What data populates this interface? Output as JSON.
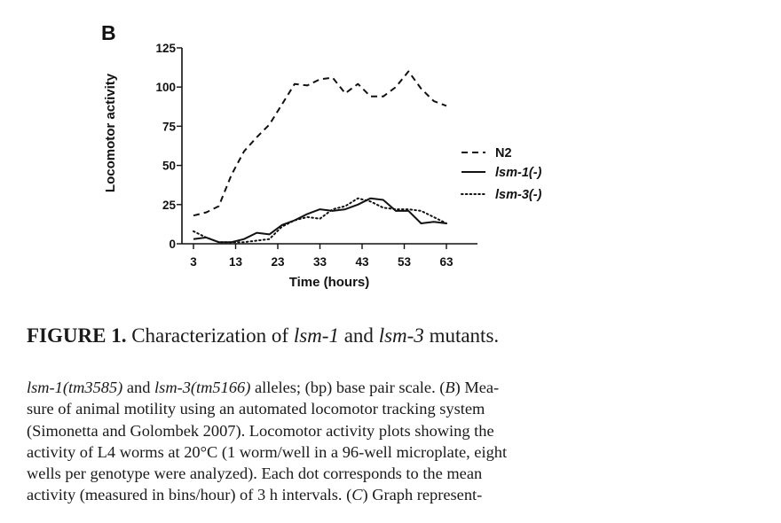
{
  "panel_label": "B",
  "chart_data": {
    "type": "line",
    "ylabel": "Locomotor activity",
    "xlabel": "Time (hours)",
    "yticks": [
      "0",
      "25",
      "50",
      "75",
      "100",
      "125"
    ],
    "xticks": [
      "3",
      "13",
      "23",
      "33",
      "43",
      "53",
      "63"
    ],
    "ylim": [
      0,
      125
    ],
    "xlim": [
      3,
      63
    ],
    "grid": false,
    "legend_position": "right",
    "series": [
      {
        "name": "N2",
        "line_style": "dashed",
        "x": [
          3,
          6,
          9,
          12,
          15,
          18,
          21,
          24,
          27,
          30,
          33,
          36,
          39,
          42,
          45,
          48,
          51,
          54,
          57,
          60,
          63
        ],
        "values": [
          18,
          20,
          24,
          44,
          59,
          68,
          76,
          89,
          102,
          101,
          105,
          106,
          96,
          102,
          94,
          94,
          100,
          110,
          99,
          91,
          88
        ]
      },
      {
        "name": "lsm-1(-)",
        "line_style": "solid",
        "x": [
          3,
          6,
          9,
          12,
          15,
          18,
          21,
          24,
          27,
          30,
          33,
          36,
          39,
          42,
          45,
          48,
          51,
          54,
          57,
          60,
          63
        ],
        "values": [
          3,
          4,
          1,
          1,
          3,
          7,
          6,
          12,
          15,
          19,
          22,
          21,
          22,
          25,
          29,
          28,
          21,
          21,
          13,
          14,
          13
        ]
      },
      {
        "name": "lsm-3(-)",
        "line_style": "dotted",
        "x": [
          3,
          6,
          9,
          12,
          15,
          18,
          21,
          24,
          27,
          30,
          33,
          36,
          39,
          42,
          45,
          48,
          51,
          54,
          57,
          60,
          63
        ],
        "values": [
          8,
          4,
          1,
          1,
          1,
          2,
          3,
          11,
          15,
          17,
          16,
          22,
          24,
          29,
          27,
          23,
          22,
          22,
          21,
          17,
          13
        ]
      }
    ]
  },
  "figure_title": {
    "label": "FIGURE 1.",
    "text_before": " Characterization of ",
    "gene1": "lsm-1",
    "text_middle": " and ",
    "gene2": "lsm-3",
    "text_after": " mutants."
  },
  "caption_lines": [
    [
      {
        "t": "lsm-1(tm3585)",
        "i": true
      },
      {
        "t": " and ",
        "i": false
      },
      {
        "t": "lsm-3(tm5166)",
        "i": true
      },
      {
        "t": " alleles; (bp) base pair scale. (",
        "i": false
      },
      {
        "t": "B",
        "i": true
      },
      {
        "t": ") Mea-",
        "i": false
      }
    ],
    [
      {
        "t": "sure of animal motility using an automated locomotor tracking system",
        "i": false
      }
    ],
    [
      {
        "t": "(Simonetta and Golombek 2007). Locomotor activity plots showing the",
        "i": false
      }
    ],
    [
      {
        "t": "activity of L4 worms at 20°C (1 worm/well in a 96-well microplate, eight",
        "i": false
      }
    ],
    [
      {
        "t": "wells per genotype were analyzed). Each dot corresponds to the mean",
        "i": false
      }
    ],
    [
      {
        "t": "activity (measured in bins/hour) of 3 h intervals. (",
        "i": false
      },
      {
        "t": "C",
        "i": true
      },
      {
        "t": ") Graph represent-",
        "i": false
      }
    ]
  ]
}
